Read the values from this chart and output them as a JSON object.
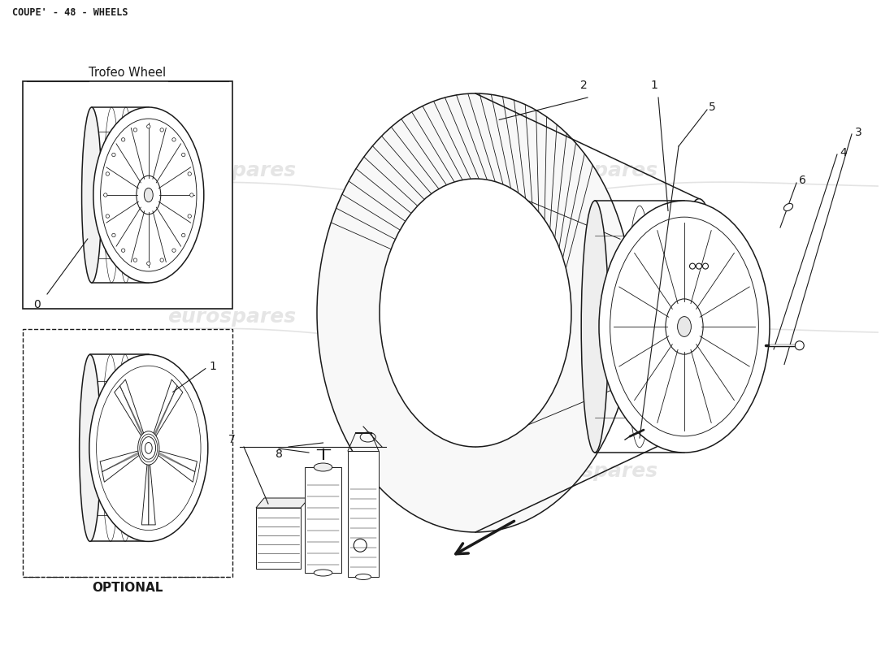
{
  "title": "COUPE' - 48 - WHEELS",
  "background_color": "#ffffff",
  "line_color": "#1a1a1a",
  "watermark_color": "#cccccc",
  "watermark_text": "eurospares",
  "trofeo_label": "Trofeo Wheel",
  "optional_label": "OPTIONAL",
  "title_fontsize": 8.5,
  "label_fontsize": 10,
  "number_fontsize": 10,
  "wm_fontsize": 18
}
